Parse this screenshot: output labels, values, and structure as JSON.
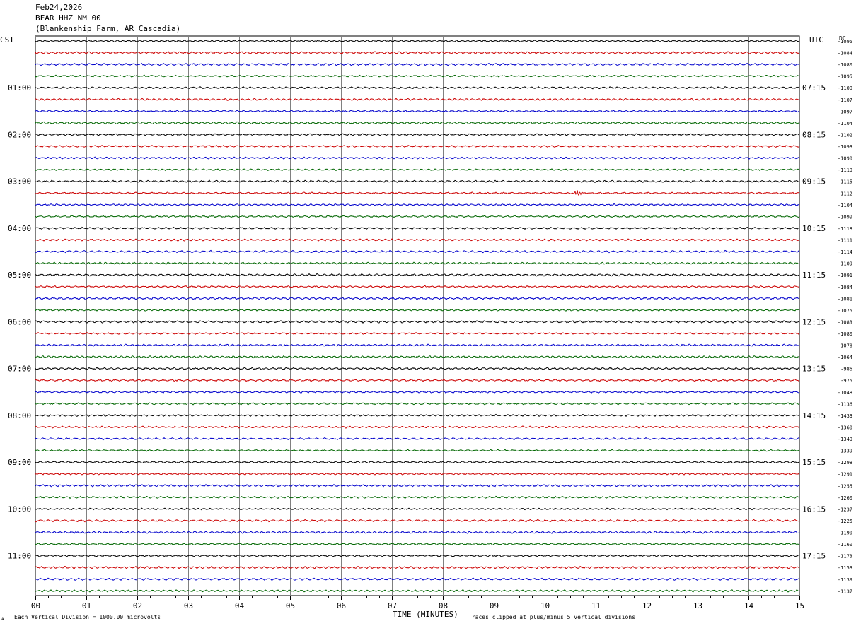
{
  "header": {
    "date": "Feb24,2026",
    "station": "BFAR HHZ NM 00",
    "location": "(Blankenship Farm, AR Cascadia)"
  },
  "left_timezone": "CST",
  "right_timezone": "UTC",
  "dc_label": "DC",
  "footer": {
    "vertical_division": "Each Vertical Division = 1000.00 microvolts",
    "clip_note": "Traces clipped at plus/minus 5 vertical divisions",
    "corner_mark": "A"
  },
  "chart_data": {
    "type": "line",
    "title": "",
    "xlabel": "TIME (MINUTES)",
    "ylabel": "",
    "x_ticks": [
      "00",
      "01",
      "02",
      "03",
      "04",
      "05",
      "06",
      "07",
      "08",
      "09",
      "10",
      "11",
      "12",
      "13",
      "14",
      "15"
    ],
    "xlim": [
      0,
      15
    ],
    "grid": true,
    "trace_colors": [
      "#000000",
      "#cc0000",
      "#0000cc",
      "#006600"
    ],
    "left_hour_labels": [
      "01:00",
      "02:00",
      "03:00",
      "04:00",
      "05:00",
      "06:00",
      "07:00",
      "08:00",
      "09:00",
      "10:00",
      "11:00"
    ],
    "right_hour_labels": [
      "07:15",
      "08:15",
      "09:15",
      "10:15",
      "11:15",
      "12:15",
      "13:15",
      "14:15",
      "15:15",
      "16:15",
      "17:15"
    ],
    "dc_offsets": [
      "-1095",
      "-1084",
      "-1080",
      "-1095",
      "-1100",
      "-1107",
      "-1097",
      "-1104",
      "-1102",
      "-1093",
      "-1090",
      "-1119",
      "-1115",
      "-1112",
      "-1104",
      "-1099",
      "-1118",
      "-1111",
      "-1114",
      "-1109",
      "-1091",
      "-1084",
      "-1081",
      "-1075",
      "-1083",
      "-1080",
      "-1078",
      "-1064",
      "-986",
      "-975",
      "-1048",
      "-1136",
      "-1433",
      "-1360",
      "-1349",
      "-1339",
      "-1298",
      "-1291",
      "-1255",
      "-1260",
      "-1237",
      "-1225",
      "-1190",
      "-1160",
      "-1173",
      "-1153",
      "-1139",
      "-1137"
    ],
    "events": [
      {
        "trace": 13,
        "minute": 10.65,
        "amplitude": 1.0
      }
    ]
  }
}
